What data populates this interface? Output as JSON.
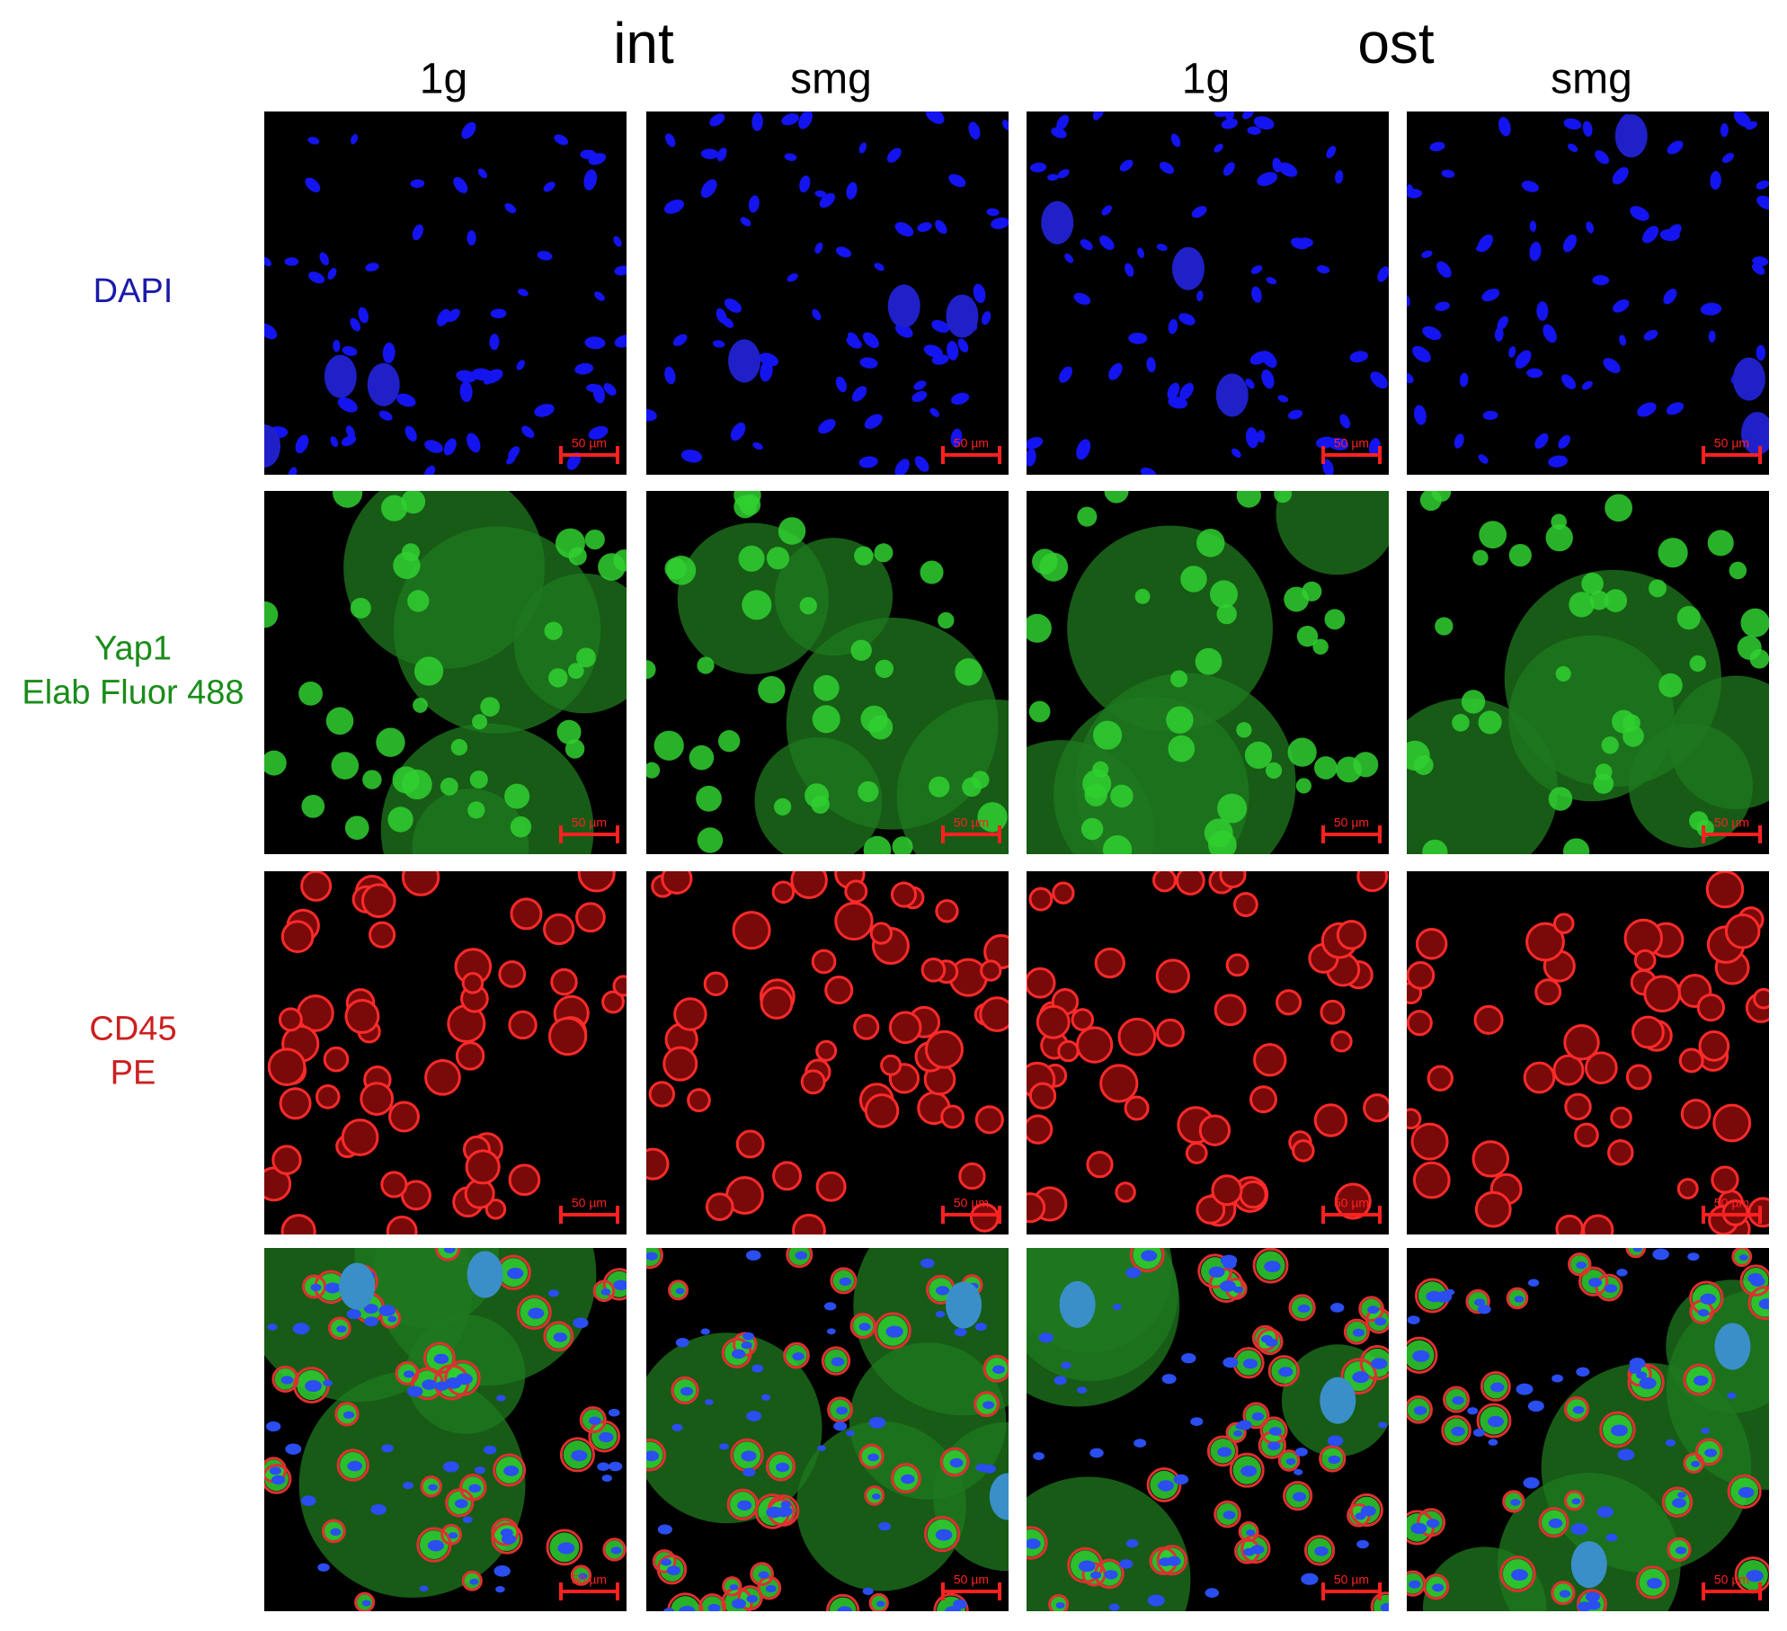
{
  "header": {
    "groups": [
      "int",
      "ost"
    ],
    "columns": [
      "1g",
      "smg",
      "1g",
      "smg"
    ]
  },
  "rows": [
    {
      "label": [
        "DAPI"
      ]
    },
    {
      "label": [
        "Yap1",
        "Elab Fluor 488"
      ]
    },
    {
      "label": [
        "CD45",
        "PE"
      ]
    },
    {
      "label": []
    }
  ],
  "panels": [
    [
      {
        "scale_bar": "50 µm"
      },
      {
        "scale_bar": "50 µm"
      },
      {
        "scale_bar": "50 µm"
      },
      {
        "scale_bar": "50 µm"
      }
    ],
    [
      {
        "scale_bar": "50 µm"
      },
      {
        "scale_bar": "50 µm"
      },
      {
        "scale_bar": "50 µm"
      },
      {
        "scale_bar": "50 µm"
      }
    ],
    [
      {
        "scale_bar": "50 µm"
      },
      {
        "scale_bar": "50 µm"
      },
      {
        "scale_bar": "50 µm"
      },
      {
        "scale_bar": "50 µm"
      }
    ],
    [
      {
        "scale_bar": "50 µm"
      },
      {
        "scale_bar": "50 µm"
      },
      {
        "scale_bar": "50 µm"
      },
      {
        "scale_bar": "50 µm"
      }
    ]
  ]
}
